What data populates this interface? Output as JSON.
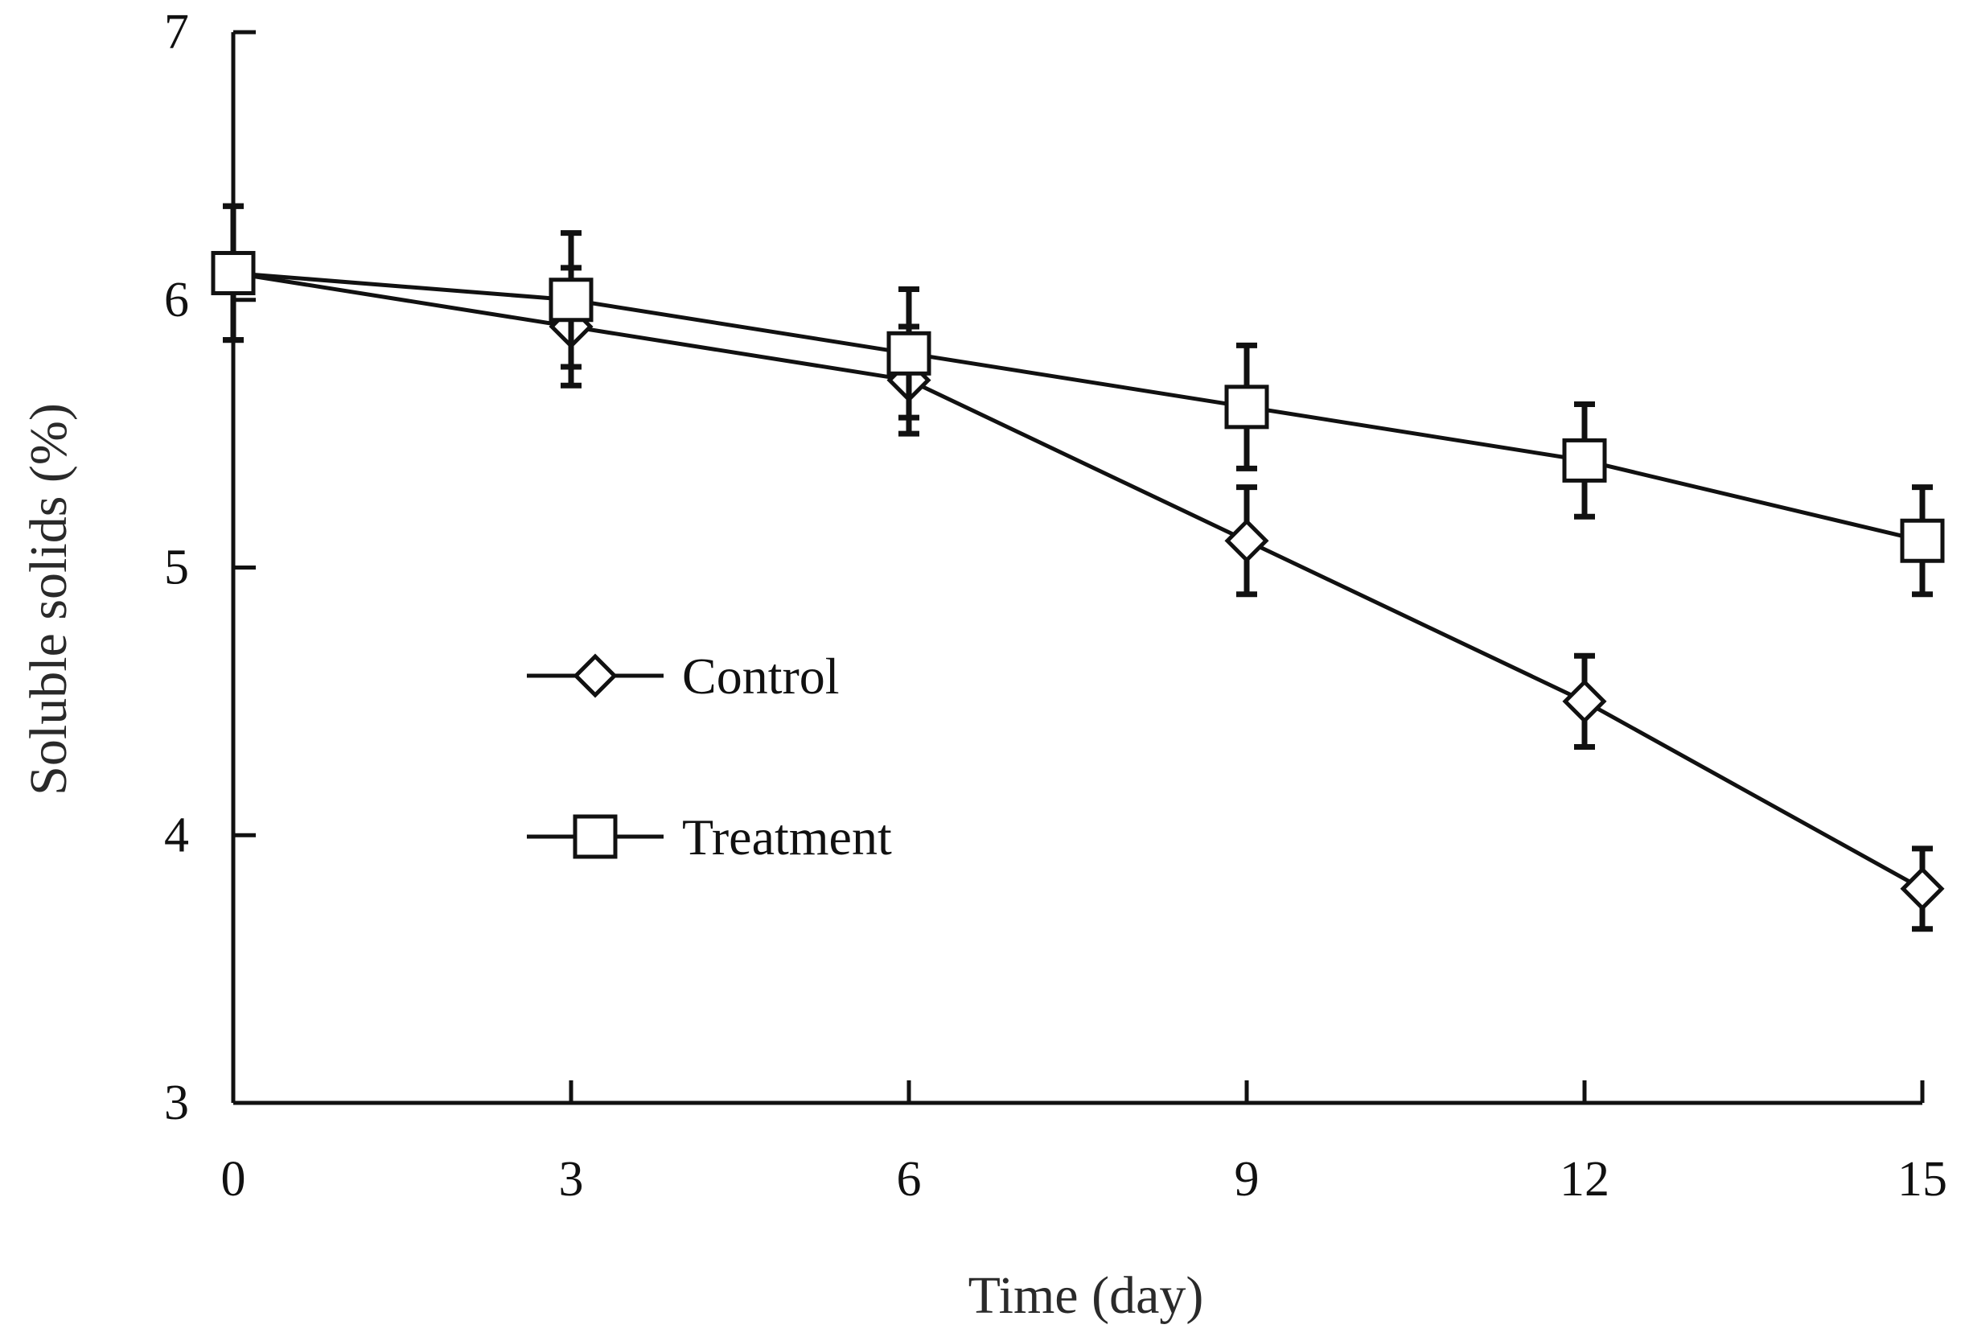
{
  "chart_data": {
    "type": "line",
    "title": "",
    "xlabel": "Time (day)",
    "ylabel": "Soluble solids (%)",
    "x": [
      0,
      3,
      6,
      9,
      12,
      15
    ],
    "xlim": [
      0,
      15
    ],
    "ylim": [
      3,
      7
    ],
    "xticks": [
      "0",
      "3",
      "6",
      "9",
      "12",
      "15"
    ],
    "yticks": [
      "3",
      "4",
      "5",
      "6",
      "7"
    ],
    "grid": false,
    "legend_position": "center-left",
    "series": [
      {
        "name": "Control",
        "marker": "diamond",
        "values": [
          6.1,
          5.9,
          5.7,
          5.1,
          4.5,
          3.8
        ],
        "errors": [
          0.25,
          0.22,
          0.2,
          0.2,
          0.17,
          0.15
        ]
      },
      {
        "name": "Treatment",
        "marker": "square",
        "values": [
          6.1,
          6.0,
          5.8,
          5.6,
          5.4,
          5.1
        ],
        "errors": [
          0.25,
          0.25,
          0.24,
          0.23,
          0.21,
          0.2
        ]
      }
    ],
    "colors": {
      "line": "#111111",
      "marker_fill": "#ffffff"
    }
  }
}
